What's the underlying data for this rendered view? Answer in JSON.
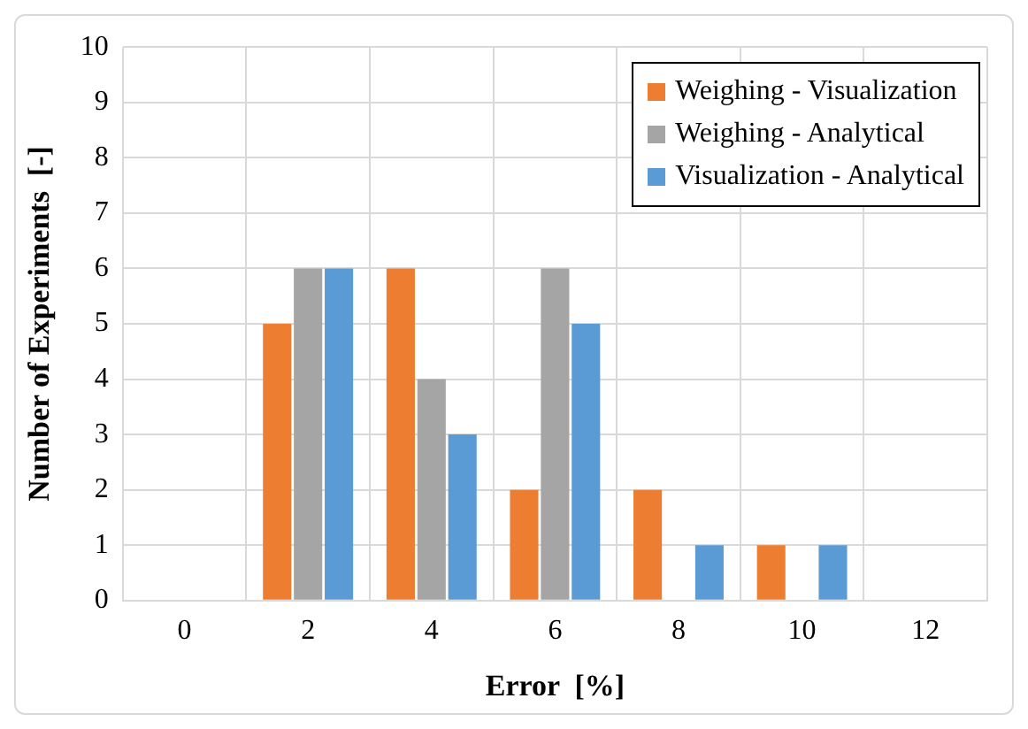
{
  "chart_data": {
    "type": "bar",
    "xlabel": "Error  [%]",
    "ylabel": "Number of Experiments  [-]",
    "categories": [
      "0",
      "2",
      "4",
      "6",
      "8",
      "10",
      "12"
    ],
    "series": [
      {
        "name": "Weighing - Visualization",
        "color": "#ed7d31",
        "values": [
          0,
          5,
          6,
          2,
          2,
          1,
          0
        ]
      },
      {
        "name": "Weighing - Analytical",
        "color": "#a5a5a5",
        "values": [
          0,
          6,
          4,
          6,
          0,
          0,
          0
        ]
      },
      {
        "name": "Visualization - Analytical",
        "color": "#5b9bd5",
        "values": [
          0,
          6,
          3,
          5,
          1,
          1,
          0
        ]
      }
    ],
    "ylim": [
      0,
      10
    ],
    "yticks": [
      0,
      1,
      2,
      3,
      4,
      5,
      6,
      7,
      8,
      9,
      10
    ],
    "grid": true,
    "legend": "top right"
  }
}
